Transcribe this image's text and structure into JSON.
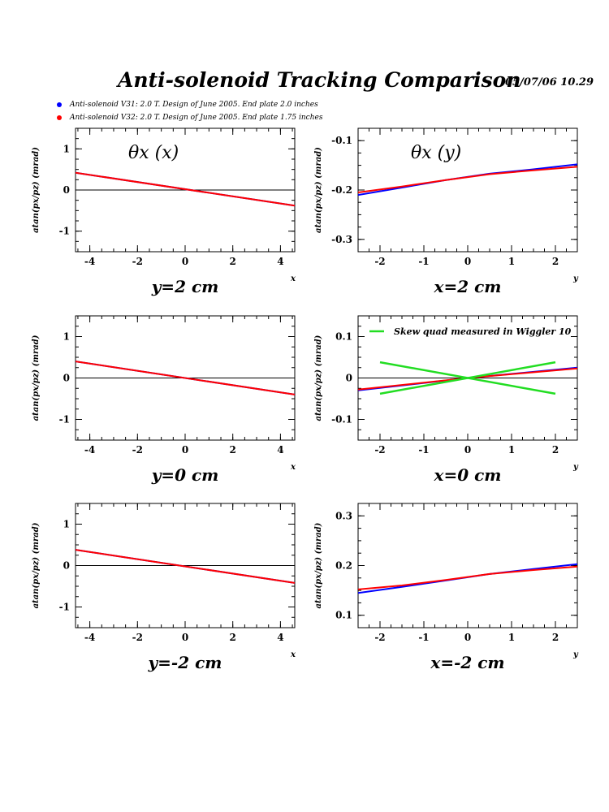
{
  "header": {
    "title": "Anti-solenoid Tracking Comparison",
    "datestamp": "05/07/06   10.29"
  },
  "legend": [
    {
      "label": "Anti-solenoid V31: 2.0 T. Design of June 2005. End plate 2.0 inches",
      "color": "#0000ff"
    },
    {
      "label": "Anti-solenoid V32: 2.0 T. Design of June 2005. End plate 1.75 inches",
      "color": "#ff0000"
    }
  ],
  "chart_data": [
    {
      "type": "line",
      "ylabel": "atan(px/pz) (mrad)",
      "xlabel": "x",
      "caption": "y=2 cm",
      "title": "θx (x)",
      "xlim": [
        -4.6,
        4.6
      ],
      "ylim": [
        -1.5,
        1.5
      ],
      "xticks": [
        -4,
        -2,
        0,
        2,
        4
      ],
      "yticks": [
        -1,
        0,
        1
      ],
      "series": [
        {
          "color": "#0000ff",
          "x": [
            -4.6,
            4.6
          ],
          "y": [
            0.42,
            -0.38
          ]
        },
        {
          "color": "#ff0000",
          "x": [
            -4.6,
            4.6
          ],
          "y": [
            0.42,
            -0.38
          ]
        }
      ]
    },
    {
      "type": "line",
      "ylabel": "atan(px/pz) (mrad)",
      "xlabel": "y",
      "caption": "x=2 cm",
      "title": "θx (y)",
      "xlim": [
        -2.5,
        2.5
      ],
      "ylim": [
        -0.325,
        -0.075
      ],
      "xticks": [
        -2,
        -1,
        0,
        1,
        2
      ],
      "yticks": [
        -0.3,
        -0.2,
        -0.1
      ],
      "series": [
        {
          "color": "#0000ff",
          "x": [
            -2.5,
            -1.5,
            -0.5,
            0.5,
            1.5,
            2.5
          ],
          "y": [
            -0.21,
            -0.195,
            -0.18,
            -0.167,
            -0.158,
            -0.148
          ]
        },
        {
          "color": "#ff0000",
          "x": [
            -2.5,
            -1.5,
            -0.5,
            0.5,
            1.5,
            2.5
          ],
          "y": [
            -0.205,
            -0.193,
            -0.18,
            -0.168,
            -0.16,
            -0.153
          ]
        }
      ]
    },
    {
      "type": "line",
      "ylabel": "atan(px/pz) (mrad)",
      "xlabel": "x",
      "caption": "y=0 cm",
      "xlim": [
        -4.6,
        4.6
      ],
      "ylim": [
        -1.5,
        1.5
      ],
      "xticks": [
        -4,
        -2,
        0,
        2,
        4
      ],
      "yticks": [
        -1,
        0,
        1
      ],
      "series": [
        {
          "color": "#0000ff",
          "x": [
            -4.6,
            4.6
          ],
          "y": [
            0.4,
            -0.4
          ]
        },
        {
          "color": "#ff0000",
          "x": [
            -4.6,
            4.6
          ],
          "y": [
            0.4,
            -0.4
          ]
        }
      ]
    },
    {
      "type": "line",
      "ylabel": "atan(px/pz) (mrad)",
      "xlabel": "y",
      "caption": "x=0 cm",
      "xlim": [
        -2.5,
        2.5
      ],
      "ylim": [
        -0.15,
        0.15
      ],
      "xticks": [
        -2,
        -1,
        0,
        1,
        2
      ],
      "yticks": [
        -0.1,
        0,
        0.1
      ],
      "legend_label": "Skew quad measured in Wiggler 10",
      "series": [
        {
          "color": "#0000ff",
          "x": [
            -2.5,
            0,
            2.5
          ],
          "y": [
            -0.03,
            0,
            0.025
          ]
        },
        {
          "color": "#ff0000",
          "x": [
            -2.5,
            0,
            2.5
          ],
          "y": [
            -0.028,
            0,
            0.023
          ]
        },
        {
          "color": "#22dd22",
          "x": [
            -2,
            2
          ],
          "y": [
            0.038,
            -0.038
          ]
        },
        {
          "color": "#22dd22",
          "x": [
            -2,
            2
          ],
          "y": [
            -0.038,
            0.038
          ]
        }
      ]
    },
    {
      "type": "line",
      "ylabel": "atan(px/pz) (mrad)",
      "xlabel": "x",
      "caption": "y=-2 cm",
      "xlim": [
        -4.6,
        4.6
      ],
      "ylim": [
        -1.5,
        1.5
      ],
      "xticks": [
        -4,
        -2,
        0,
        2,
        4
      ],
      "yticks": [
        -1,
        0,
        1
      ],
      "series": [
        {
          "color": "#0000ff",
          "x": [
            -4.6,
            4.6
          ],
          "y": [
            0.38,
            -0.42
          ]
        },
        {
          "color": "#ff0000",
          "x": [
            -4.6,
            4.6
          ],
          "y": [
            0.38,
            -0.42
          ]
        }
      ]
    },
    {
      "type": "line",
      "ylabel": "atan(px/pz) (mrad)",
      "xlabel": "y",
      "caption": "x=-2 cm",
      "xlim": [
        -2.5,
        2.5
      ],
      "ylim": [
        0.075,
        0.325
      ],
      "xticks": [
        -2,
        -1,
        0,
        1,
        2
      ],
      "yticks": [
        0.1,
        0.2,
        0.3
      ],
      "series": [
        {
          "color": "#0000ff",
          "x": [
            -2.5,
            -1.5,
            -0.5,
            0.5,
            1.5,
            2.5
          ],
          "y": [
            0.145,
            0.157,
            0.17,
            0.183,
            0.193,
            0.203
          ]
        },
        {
          "color": "#ff0000",
          "x": [
            -2.5,
            -1.5,
            -0.5,
            0.5,
            1.5,
            2.5
          ],
          "y": [
            0.152,
            0.16,
            0.171,
            0.183,
            0.191,
            0.198
          ]
        }
      ]
    }
  ]
}
